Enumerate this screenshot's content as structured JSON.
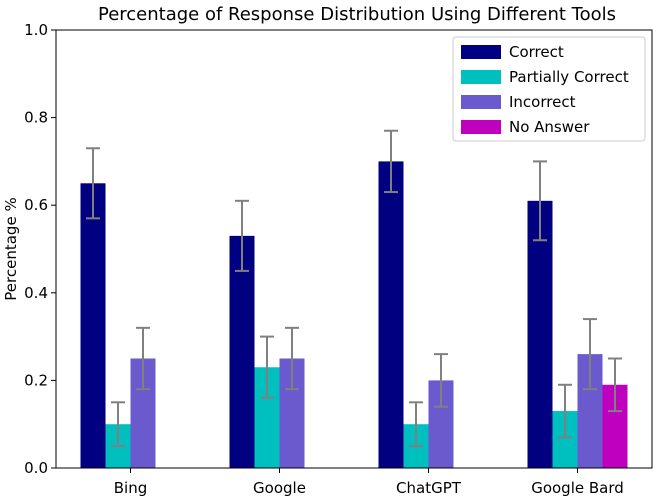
{
  "chart_data": {
    "type": "bar",
    "title": "Percentage of Response Distribution Using Different Tools",
    "xlabel": "",
    "ylabel": "Percentage %",
    "ylim": [
      0,
      1.0
    ],
    "yticks": [
      "0.0",
      "0.2",
      "0.4",
      "0.6",
      "0.8",
      "1.0"
    ],
    "categories": [
      "Bing",
      "Google",
      "ChatGPT",
      "Google Bard"
    ],
    "series": [
      {
        "name": "Correct",
        "color": "#000080",
        "values": [
          0.65,
          0.53,
          0.7,
          0.61
        ],
        "error": [
          0.08,
          0.08,
          0.07,
          0.09
        ]
      },
      {
        "name": "Partially Correct",
        "color": "#00bfbf",
        "values": [
          0.1,
          0.23,
          0.1,
          0.13
        ],
        "error": [
          0.05,
          0.07,
          0.05,
          0.06
        ]
      },
      {
        "name": "Incorrect",
        "color": "#6a5acd",
        "values": [
          0.25,
          0.25,
          0.2,
          0.26
        ],
        "error": [
          0.07,
          0.07,
          0.06,
          0.08
        ]
      },
      {
        "name": "No Answer",
        "color": "#bf00bf",
        "values": [
          0.0,
          0.0,
          0.0,
          0.19
        ],
        "error": [
          0.0,
          0.0,
          0.0,
          0.06
        ]
      }
    ],
    "grid": false,
    "legend": "top-right"
  }
}
